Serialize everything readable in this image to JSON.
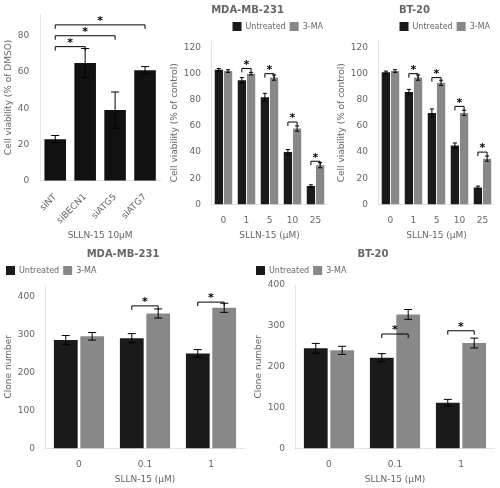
{
  "chart_data": [
    {
      "type": "bar",
      "categories": [
        "siNT",
        "siBECN1",
        "siATG5",
        "siATG7"
      ],
      "values": [
        23,
        65,
        39,
        61
      ],
      "errors": [
        2,
        8,
        10,
        2
      ],
      "color": "#111111",
      "x_label": "SLLN-15 10μM",
      "y_label": "Cell viability (% of DMSO)",
      "ylim": [
        0,
        92
      ],
      "yticks": [
        0,
        20,
        40,
        60,
        80
      ],
      "grid": false,
      "annotations": [
        {
          "text": "*",
          "from": "siNT",
          "to": "siBECN1",
          "y": 74
        },
        {
          "text": "*",
          "from": "siNT",
          "to": "siATG5",
          "y": 80
        },
        {
          "text": "*",
          "from": "siNT",
          "to": "siATG7",
          "y": 86
        }
      ]
    },
    {
      "type": "bar",
      "title": "MDA-MB-231",
      "categories": [
        "0",
        "1",
        "5",
        "10",
        "25"
      ],
      "series": [
        {
          "name": "Untreated",
          "color": "#1a1a1a",
          "values": [
            103,
            95,
            82,
            40,
            14
          ],
          "errors": [
            1,
            2,
            3,
            2,
            1
          ]
        },
        {
          "name": "3-MA",
          "color": "#888888",
          "values": [
            102,
            100,
            97,
            58,
            30
          ],
          "errors": [
            1,
            1,
            2,
            2,
            2
          ]
        }
      ],
      "x_label": "SLLN-15 (μM)",
      "y_label": "Cell viability (% of control)",
      "ylim": [
        0,
        125
      ],
      "yticks": [
        0,
        20,
        40,
        60,
        80,
        100,
        120
      ],
      "grid": false,
      "legend": "upper right",
      "annotations": [
        {
          "text": "*",
          "category": "1",
          "y": 104
        },
        {
          "text": "*",
          "category": "5",
          "y": 100
        },
        {
          "text": "*",
          "category": "10",
          "y": 63
        },
        {
          "text": "*",
          "category": "25",
          "y": 33
        }
      ]
    },
    {
      "type": "bar",
      "title": "BT-20",
      "categories": [
        "0",
        "1",
        "5",
        "10",
        "25"
      ],
      "series": [
        {
          "name": "Untreated",
          "color": "#1a1a1a",
          "values": [
            101,
            86,
            70,
            45,
            13
          ],
          "errors": [
            1,
            2,
            3,
            2,
            1
          ]
        },
        {
          "name": "3-MA",
          "color": "#888888",
          "values": [
            102,
            97,
            93,
            70,
            35
          ],
          "errors": [
            1,
            2,
            2,
            2,
            2
          ]
        }
      ],
      "x_label": "SLLN-15 (μM)",
      "y_label": "Cell viability (% of control)",
      "ylim": [
        0,
        125
      ],
      "yticks": [
        0,
        20,
        40,
        60,
        80,
        100,
        120
      ],
      "grid": false,
      "legend": "upper right",
      "annotations": [
        {
          "text": "*",
          "category": "1",
          "y": 100
        },
        {
          "text": "*",
          "category": "5",
          "y": 97
        },
        {
          "text": "*",
          "category": "10",
          "y": 75
        },
        {
          "text": "*",
          "category": "25",
          "y": 40
        }
      ]
    },
    {
      "type": "bar",
      "title": "MDA-MB-231",
      "categories": [
        "0",
        "0.1",
        "1"
      ],
      "series": [
        {
          "name": "Untreated",
          "color": "#1a1a1a",
          "values": [
            285,
            290,
            250
          ],
          "errors": [
            12,
            12,
            10
          ]
        },
        {
          "name": "3-MA",
          "color": "#888888",
          "values": [
            295,
            355,
            370
          ],
          "errors": [
            10,
            12,
            12
          ]
        }
      ],
      "x_label": "SLLN-15 (μM)",
      "y_label": "Clone number",
      "ylim": [
        0,
        430
      ],
      "yticks": [
        0,
        100,
        200,
        300,
        400
      ],
      "grid": false,
      "legend": "upper left",
      "annotations": [
        {
          "text": "*",
          "category": "0.1",
          "y": 375
        },
        {
          "text": "*",
          "category": "1",
          "y": 385
        }
      ]
    },
    {
      "type": "bar",
      "title": "BT-20",
      "categories": [
        "0",
        "0.1",
        "1"
      ],
      "series": [
        {
          "name": "Untreated",
          "color": "#1a1a1a",
          "values": [
            245,
            222,
            112
          ],
          "errors": [
            12,
            10,
            8
          ]
        },
        {
          "name": "3-MA",
          "color": "#888888",
          "values": [
            240,
            328,
            258
          ],
          "errors": [
            10,
            12,
            12
          ]
        }
      ],
      "x_label": "SLLN-15 (μM)",
      "y_label": "Clone number",
      "ylim": [
        0,
        400
      ],
      "yticks": [
        0,
        100,
        200,
        300,
        400
      ],
      "grid": false,
      "legend": "upper left",
      "annotations": [
        {
          "text": "*",
          "category": "0.1",
          "y": 280
        },
        {
          "text": "*",
          "category": "1",
          "y": 288
        }
      ]
    }
  ]
}
